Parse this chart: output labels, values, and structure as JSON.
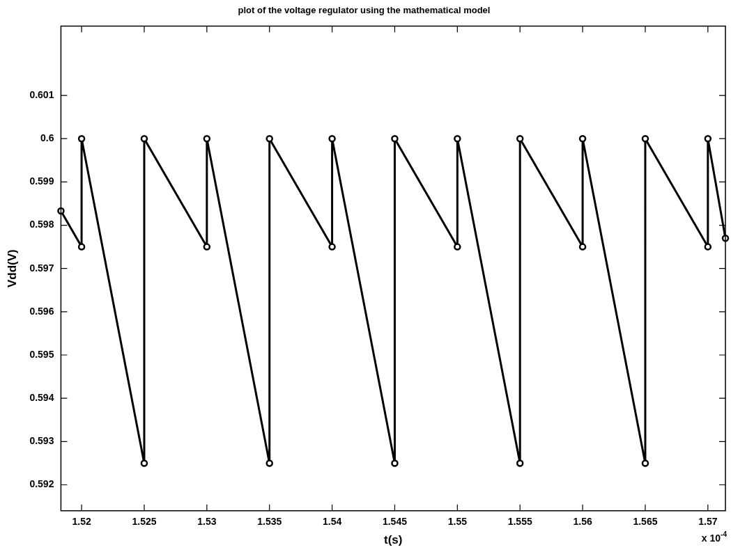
{
  "chart_data": {
    "type": "line",
    "title": "plot of the voltage regulator using the mathematical model",
    "xlabel": "t(s)",
    "ylabel": "Vdd(V)",
    "annotations": [
      "x 10$^{-4}$"
    ],
    "series": [
      {
        "color": "#000000",
        "x": [
          1.51835,
          1.52,
          1.52,
          1.525,
          1.525,
          1.53,
          1.53,
          1.535,
          1.535,
          1.54,
          1.54,
          1.545,
          1.545,
          1.55,
          1.55,
          1.555,
          1.555,
          1.56,
          1.56,
          1.565,
          1.565,
          1.57,
          1.57,
          1.5714
        ],
        "values": [
          0.59833,
          0.5975,
          0.6,
          0.5925,
          0.6,
          0.5975,
          0.6,
          0.5925,
          0.6,
          0.5975,
          0.6,
          0.5925,
          0.6,
          0.5975,
          0.6,
          0.5925,
          0.6,
          0.5975,
          0.6,
          0.5925,
          0.6,
          0.5975,
          0.6,
          0.5977
        ]
      }
    ],
    "xlim": [
      1.51835,
      1.5714
    ],
    "xticks": [
      1.52,
      1.525,
      1.53,
      1.535,
      1.54,
      1.545,
      1.55,
      1.555,
      1.56,
      1.565,
      1.57
    ],
    "ylim": [
      0.5914,
      0.6026
    ],
    "yticks": [
      0.592,
      0.593,
      0.594,
      0.595,
      0.596,
      0.597,
      0.598,
      0.599,
      0.6,
      0.601
    ],
    "grid": false,
    "legend": false,
    "marker": "circle",
    "line_style": "solid"
  }
}
